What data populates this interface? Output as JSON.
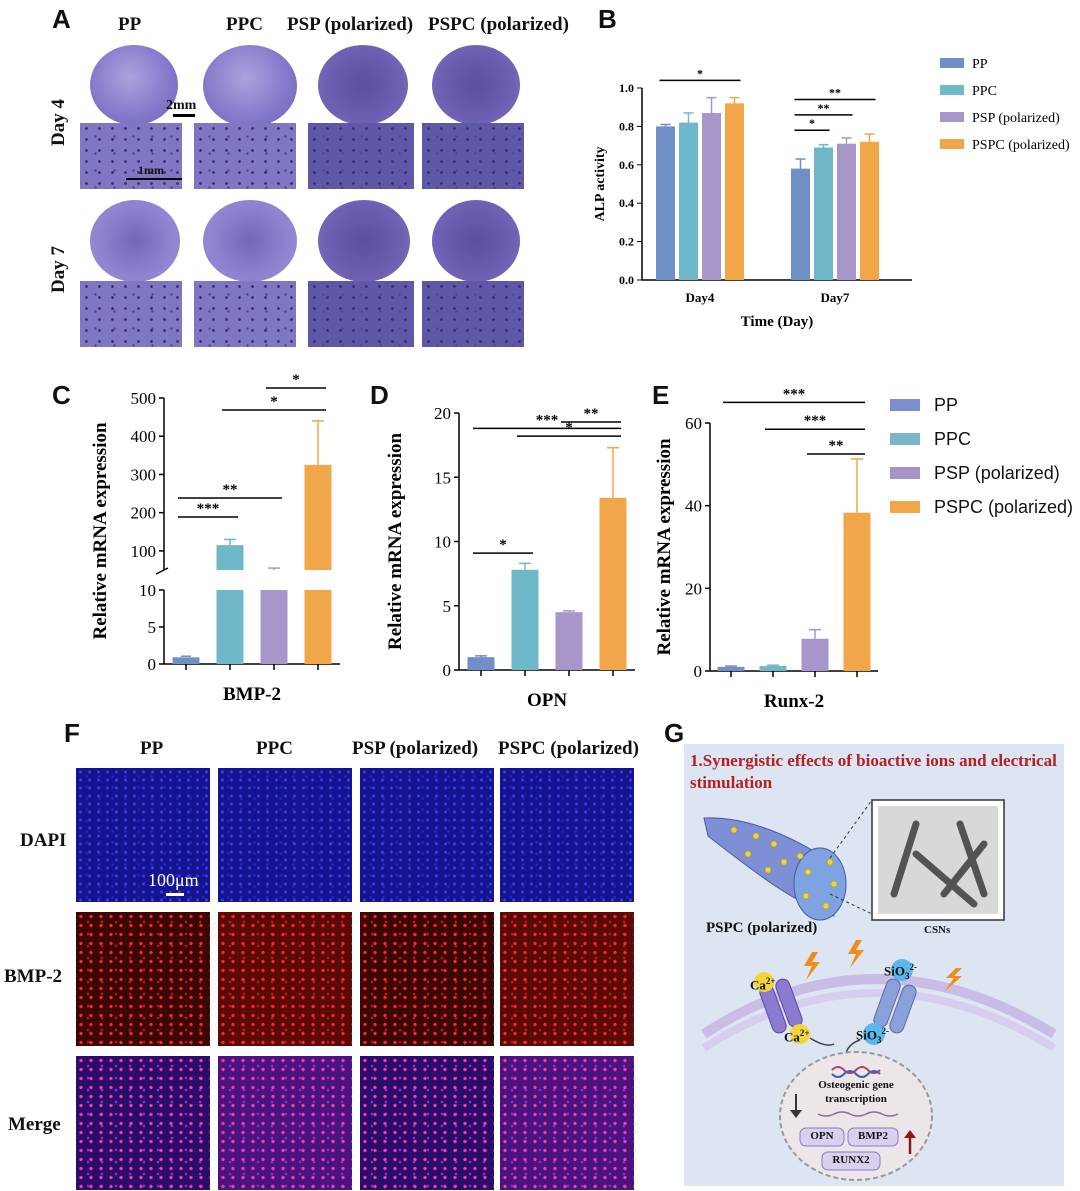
{
  "panel_labels": {
    "A": "A",
    "B": "B",
    "C": "C",
    "D": "D",
    "E": "E",
    "F": "F",
    "G": "G"
  },
  "panel_a": {
    "columns": [
      "PP",
      "PPC",
      "PSP (polarized)",
      "PSPC (polarized)"
    ],
    "rows": [
      "Day 4",
      "Day 7"
    ],
    "scale_dish": "2mm",
    "scale_micro": "1mm"
  },
  "chart_data": [
    {
      "id": "B",
      "type": "bar",
      "categories": [
        "Day4",
        "Day7"
      ],
      "series": [
        {
          "name": "PP",
          "values": [
            0.8,
            0.58
          ],
          "errors": [
            0.01,
            0.05
          ],
          "color": "#6f8fc6"
        },
        {
          "name": "PPC",
          "values": [
            0.82,
            0.69
          ],
          "errors": [
            0.05,
            0.015
          ],
          "color": "#6fb8c9"
        },
        {
          "name": "PSP (polarized)",
          "values": [
            0.87,
            0.71
          ],
          "errors": [
            0.08,
            0.03
          ],
          "color": "#a796c9"
        },
        {
          "name": "PSPC (polarized)",
          "values": [
            0.92,
            0.72
          ],
          "errors": [
            0.03,
            0.04
          ],
          "color": "#f2a64a"
        }
      ],
      "xlabel": "Time (Day)",
      "ylabel": "ALP activity",
      "ylim": [
        0,
        1.0
      ],
      "yticks": [
        "0.0",
        "0.2",
        "0.4",
        "0.6",
        "0.8",
        "1.0"
      ],
      "significance": [
        {
          "group": 0,
          "from": 0,
          "to": 3,
          "label": "*",
          "y": 1.04
        },
        {
          "group": 1,
          "from": 0,
          "to": 1,
          "label": "*",
          "y": 0.78
        },
        {
          "group": 1,
          "from": 0,
          "to": 2,
          "label": "**",
          "y": 0.86
        },
        {
          "group": 1,
          "from": 0,
          "to": 3,
          "label": "**",
          "y": 0.94
        }
      ]
    },
    {
      "id": "C",
      "type": "bar",
      "categories": [
        "PP",
        "PPC",
        "PSP (polarized)",
        "PSPC (polarized)"
      ],
      "values": [
        0.9,
        115,
        45,
        325
      ],
      "errors": [
        0.15,
        15,
        10,
        115
      ],
      "xlabel": "BMP-2",
      "ylabel": "Relative mRNA expression",
      "axis_break": true,
      "yticks_lower": [
        "0",
        "5",
        "10"
      ],
      "yticks_upper": [
        "100",
        "200",
        "300",
        "400",
        "500"
      ],
      "significance": [
        {
          "from": 2,
          "to": 3,
          "label": "*"
        },
        {
          "from": 1,
          "to": 3,
          "label": "*"
        },
        {
          "from": 0,
          "to": 2,
          "label": "**"
        },
        {
          "from": 0,
          "to": 1,
          "label": "***"
        }
      ]
    },
    {
      "id": "D",
      "type": "bar",
      "categories": [
        "PP",
        "PPC",
        "PSP (polarized)",
        "PSPC (polarized)"
      ],
      "values": [
        1.0,
        7.8,
        4.5,
        13.4
      ],
      "errors": [
        0.1,
        0.5,
        0.1,
        3.9
      ],
      "xlabel": "OPN",
      "ylabel": "Relative mRNA expression",
      "ylim": [
        0,
        20
      ],
      "yticks": [
        "0",
        "5",
        "10",
        "15",
        "20"
      ],
      "significance": [
        {
          "from": 2,
          "to": 3,
          "label": "**",
          "y": 19.3
        },
        {
          "from": 1,
          "to": 3,
          "label": "*",
          "y": 18.2
        },
        {
          "from": 0,
          "to": 3,
          "label": "***",
          "y": 18.8
        },
        {
          "from": 0,
          "to": 1,
          "label": "*",
          "y": 9.1
        }
      ]
    },
    {
      "id": "E",
      "type": "bar",
      "categories": [
        "PP",
        "PPC",
        "PSP (polarized)",
        "PSPC (polarized)"
      ],
      "values": [
        1.0,
        1.2,
        7.8,
        38.3
      ],
      "errors": [
        0.2,
        0.2,
        2.2,
        13
      ],
      "xlabel": "Runx-2",
      "ylabel": "Relative mRNA expression",
      "ylim": [
        0,
        60
      ],
      "yticks": [
        "0",
        "20",
        "40",
        "60"
      ],
      "significance": [
        {
          "from": 0,
          "to": 3,
          "label": "***",
          "y": 65
        },
        {
          "from": 1,
          "to": 3,
          "label": "***",
          "y": 58.5
        },
        {
          "from": 2,
          "to": 3,
          "label": "**",
          "y": 52.5
        }
      ]
    }
  ],
  "legend_cde": [
    "PP",
    "PPC",
    "PSP (polarized)",
    "PSPC (polarized)"
  ],
  "panel_f": {
    "columns": [
      "PP",
      "PPC",
      "PSP (polarized)",
      "PSPC (polarized)"
    ],
    "rows": [
      "DAPI",
      "BMP-2",
      "Merge"
    ],
    "scale": "100μm"
  },
  "panel_g": {
    "title": "1.Synergistic effects of bioactive ions and electrical stimulation",
    "fiber_label": "PSPC (polarized)",
    "inset_label": "CSNs",
    "ion_ca_out": "Ca",
    "ion_ca_in": "Ca",
    "ion_ca_charge": "2+",
    "ion_si_out": "SiO",
    "ion_si_in": "SiO",
    "ion_si_sub": "3",
    "ion_si_charge": "2-",
    "nucleus_text_1": "Osteogenic gene",
    "nucleus_text_2": "transcription",
    "genes": [
      "OPN",
      "BMP2",
      "RUNX2"
    ]
  },
  "colors": {
    "PP": "#6f8fc6",
    "PPC": "#6fb8c9",
    "PSP": "#a796c9",
    "PSPC": "#f2a64a",
    "legend_PP": "#7b8fce",
    "legend_PPC": "#79b7c8",
    "legend_PSP": "#a393c7",
    "legend_PSPC": "#f2a64a"
  }
}
